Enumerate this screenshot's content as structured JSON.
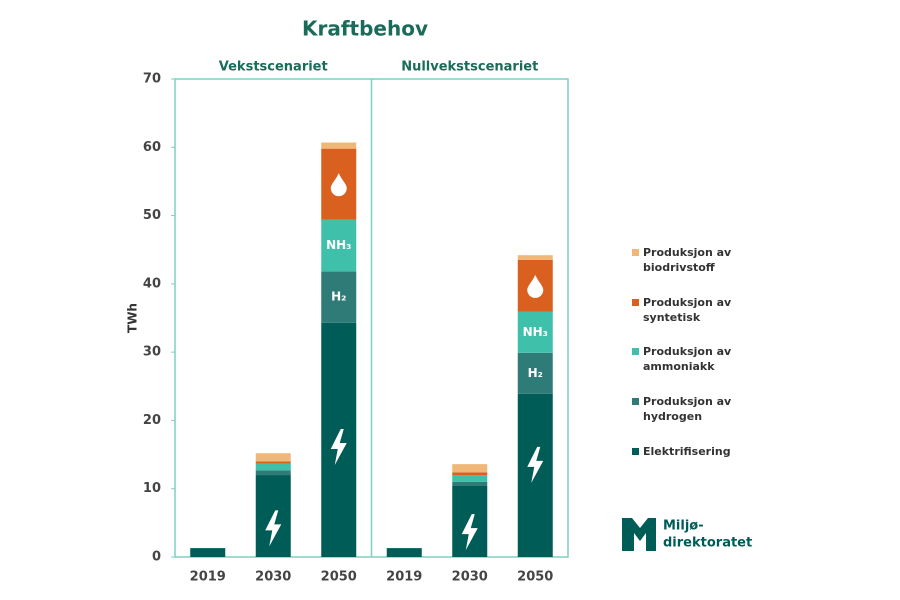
{
  "header": {
    "title": "Kraftbehov"
  },
  "chart_data": {
    "type": "bar",
    "stacked": true,
    "ylabel": "TWh",
    "panels": [
      "Vekstscenariet",
      "Nullvekstscenariet"
    ],
    "categories": [
      "2019",
      "2030",
      "2050",
      "2019",
      "2030",
      "2050"
    ],
    "ylim": [
      0,
      70
    ],
    "yticks": [
      0,
      10,
      20,
      30,
      40,
      50,
      60,
      70
    ],
    "series": [
      {
        "name": "Elektrifisering",
        "color": "#005c57",
        "values": [
          1.3,
          12.0,
          34.3,
          1.3,
          10.4,
          23.9
        ]
      },
      {
        "name": "Produksjon av hydrogen",
        "color": "#2e7b78",
        "label": "H₂",
        "values": [
          0,
          0.7,
          7.5,
          0,
          0.6,
          6.0
        ]
      },
      {
        "name": "Produksjon av ammoniakk",
        "color": "#3fc0aa",
        "label": "NH₃",
        "values": [
          0,
          1.0,
          7.6,
          0,
          1.0,
          6.0
        ]
      },
      {
        "name": "Produksjon av syntetisk",
        "color": "#d9601f",
        "values": [
          0,
          0.3,
          10.4,
          0,
          0.4,
          7.6
        ]
      },
      {
        "name": "Produksjon av biodrivstoff",
        "color": "#f0b878",
        "values": [
          0,
          1.2,
          0.9,
          0,
          1.2,
          0.7
        ]
      }
    ]
  },
  "logo": {
    "lines": [
      "Miljø-",
      "direktoratet"
    ]
  }
}
